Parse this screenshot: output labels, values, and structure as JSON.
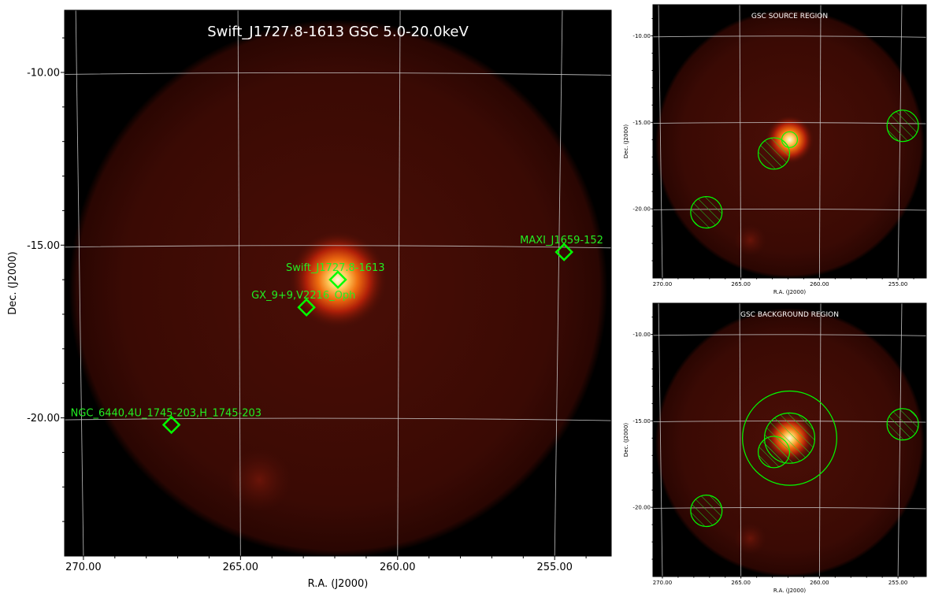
{
  "colors": {
    "background": "#000000",
    "marker": "#00ff00",
    "grid": "#cccccc",
    "glow": "#ffe9a8"
  },
  "chart_data": [
    {
      "type": "heatmap",
      "title": "Swift_J1727.8-1613 GSC 5.0-20.0keV",
      "xlabel": "R.A. (J2000)",
      "ylabel": "Dec. (J2000)",
      "xlim": [
        270.6,
        253.2
      ],
      "ylim": [
        -24.0,
        -8.2
      ],
      "xticks": [
        "270.00",
        "265.00",
        "260.00",
        "255.00"
      ],
      "yticks": [
        "-10.00",
        "-15.00",
        "-20.00"
      ],
      "grid": true,
      "sources": [
        {
          "name": "Swift_J1727.8-1613",
          "ra": 261.9,
          "dec": -16.0
        },
        {
          "name": "GX_9+9,V2216_Oph",
          "ra": 262.9,
          "dec": -16.8
        },
        {
          "name": "MAXI_J1659-152",
          "ra": 254.7,
          "dec": -15.2
        },
        {
          "name": "NGC_6440,4U_1745-203,H_1745-203",
          "ra": 267.2,
          "dec": -20.2
        }
      ]
    },
    {
      "type": "heatmap",
      "title": "GSC SOURCE REGION",
      "xlabel": "R.A. (J2000)",
      "ylabel": "Dec. (J2000)",
      "xticks": [
        "270.00",
        "265.00",
        "260.00",
        "255.00"
      ],
      "yticks": [
        "-10.00",
        "-15.00",
        "-20.00"
      ],
      "grid": true,
      "regions": [
        {
          "kind": "source",
          "ra": 261.9,
          "dec": -16.0,
          "radius_deg": 0.5,
          "hatched": false
        },
        {
          "kind": "excluded",
          "ra": 262.9,
          "dec": -16.8,
          "radius_deg": 1.0,
          "hatched": true
        },
        {
          "kind": "excluded",
          "ra": 267.2,
          "dec": -20.2,
          "radius_deg": 1.0,
          "hatched": true
        },
        {
          "kind": "excluded",
          "ra": 254.7,
          "dec": -15.2,
          "radius_deg": 1.0,
          "hatched": true
        }
      ]
    },
    {
      "type": "heatmap",
      "title": "GSC BACKGROUND REGION",
      "xlabel": "R.A. (J2000)",
      "ylabel": "Dec. (J2000)",
      "xticks": [
        "270.00",
        "265.00",
        "260.00",
        "255.00"
      ],
      "yticks": [
        "-10.00",
        "-15.00",
        "-20.00"
      ],
      "grid": true,
      "regions": [
        {
          "kind": "background-outer",
          "ra": 261.9,
          "dec": -16.0,
          "radius_deg": 3.0,
          "hatched": false
        },
        {
          "kind": "excluded",
          "ra": 261.9,
          "dec": -16.0,
          "radius_deg": 1.6,
          "hatched": true
        },
        {
          "kind": "excluded",
          "ra": 262.9,
          "dec": -16.8,
          "radius_deg": 1.0,
          "hatched": true
        },
        {
          "kind": "excluded",
          "ra": 267.2,
          "dec": -20.2,
          "radius_deg": 1.0,
          "hatched": true
        },
        {
          "kind": "excluded",
          "ra": 254.7,
          "dec": -15.2,
          "radius_deg": 1.0,
          "hatched": true
        }
      ]
    }
  ]
}
